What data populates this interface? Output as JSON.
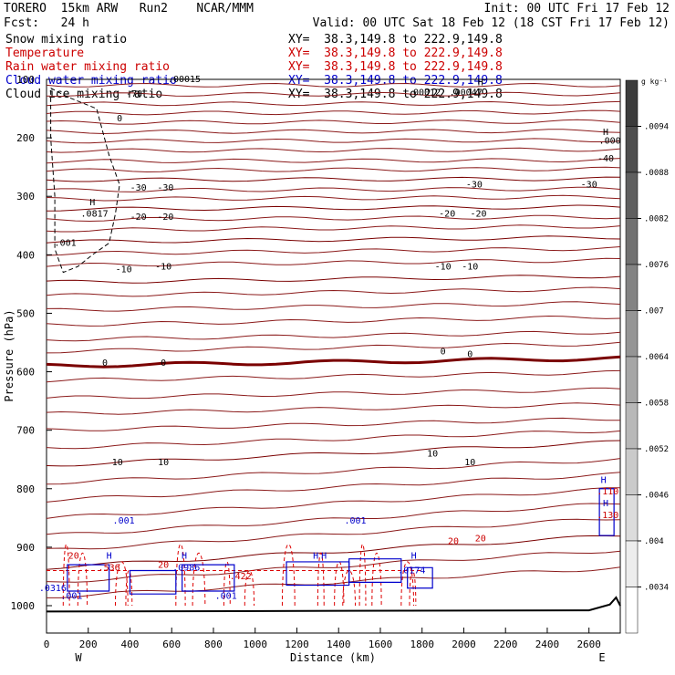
{
  "header": {
    "model": "TORERO  15km ARW   Run2    NCAR/MMM",
    "init": "Init: 00 UTC Fri 17 Feb 12",
    "fcst": "Fcst:   24 h",
    "valid": "Valid: 00 UTC Sat 18 Feb 12 (18 CST Fri 17 Feb 12)"
  },
  "fields": [
    {
      "label": "Snow mixing ratio",
      "xy": "XY=  38.3,149.8 to 222.9,149.8",
      "color": "#000000"
    },
    {
      "label": "Temperature",
      "xy": "XY=  38.3,149.8 to 222.9,149.8",
      "color": "#cc0000"
    },
    {
      "label": "Rain water mixing ratio",
      "xy": "XY=  38.3,149.8 to 222.9,149.8",
      "color": "#cc0000"
    },
    {
      "label": "Cloud water mixing ratio",
      "xy": "XY=  38.3,149.8 to 222.9,149.8",
      "color": "#0000cc"
    },
    {
      "label": "Cloud ice mixing ratio",
      "xy": "XY=  38.3,149.8 to 222.9,149.8",
      "color": "#000000"
    }
  ],
  "colorbar": {
    "unit": "g kg⁻¹",
    "ticks": [
      ".0094",
      ".0088",
      ".0082",
      ".0076",
      ".007",
      ".0064",
      ".0058",
      ".0052",
      ".0046",
      ".004",
      ".0034"
    ]
  },
  "chart_data": {
    "type": "contour",
    "xlabel": "Distance (km)",
    "ylabel": "Pressure (hPa)",
    "xlim": [
      0,
      2750
    ],
    "ylim": [
      1000,
      100
    ],
    "xticks": [
      0,
      200,
      400,
      600,
      800,
      1000,
      1200,
      1400,
      1600,
      1800,
      2000,
      2200,
      2400,
      2600
    ],
    "yticks": [
      100,
      200,
      300,
      400,
      500,
      600,
      700,
      800,
      900,
      1000
    ],
    "x_end_labels": {
      "left": "W",
      "right": "E"
    },
    "temperature_contours": [
      {
        "label": "-40",
        "p_left": 272,
        "p_right": 270
      },
      {
        "label": "-30",
        "p_left": 322,
        "p_right": 318
      },
      {
        "label": "-20",
        "p_left": 378,
        "p_right": 370
      },
      {
        "label": "-10",
        "p_left": 447,
        "p_right": 436
      },
      {
        "label": "0",
        "p_left": 590,
        "p_right": 577
      },
      {
        "label": "10",
        "p_left": 760,
        "p_right": 720
      },
      {
        "label": "20",
        "p_left": 935,
        "p_right": 880
      }
    ],
    "annotations": [
      {
        "text": "-70",
        "x": 420,
        "p": 130
      },
      {
        "text": "-40",
        "x": 2680,
        "p": 240
      },
      {
        "text": "-30",
        "x": 440,
        "p": 290
      },
      {
        "text": "-30",
        "x": 570,
        "p": 290
      },
      {
        "text": "-30",
        "x": 2050,
        "p": 285
      },
      {
        "text": "-30",
        "x": 2600,
        "p": 285
      },
      {
        "text": "-20",
        "x": 440,
        "p": 340
      },
      {
        "text": "-20",
        "x": 570,
        "p": 340
      },
      {
        "text": "-20",
        "x": 1920,
        "p": 335
      },
      {
        "text": "-20",
        "x": 2070,
        "p": 335
      },
      {
        "text": "-10",
        "x": 370,
        "p": 430
      },
      {
        "text": "-10",
        "x": 560,
        "p": 425
      },
      {
        "text": "-10",
        "x": 1900,
        "p": 425
      },
      {
        "text": "-10",
        "x": 2030,
        "p": 425
      },
      {
        "text": "0",
        "x": 280,
        "p": 590
      },
      {
        "text": "0",
        "x": 560,
        "p": 590
      },
      {
        "text": "0",
        "x": 1900,
        "p": 570
      },
      {
        "text": "0",
        "x": 2030,
        "p": 575
      },
      {
        "text": "10",
        "x": 340,
        "p": 760
      },
      {
        "text": "10",
        "x": 560,
        "p": 760
      },
      {
        "text": "10",
        "x": 1850,
        "p": 745
      },
      {
        "text": "10",
        "x": 2030,
        "p": 760
      },
      {
        "text": "20",
        "x": 130,
        "p": 920
      },
      {
        "text": "20",
        "x": 560,
        "p": 935
      },
      {
        "text": "20",
        "x": 1950,
        "p": 895
      },
      {
        "text": "20",
        "x": 2080,
        "p": 890
      },
      {
        "text": "0",
        "x": 350,
        "p": 172
      },
      {
        "text": "H",
        "x": 220,
        "p": 315
      },
      {
        "text": ".0817",
        "x": 230,
        "p": 335
      },
      {
        "text": ".001",
        "x": 90,
        "p": 385
      },
      {
        "text": ".00015",
        "x": 660,
        "p": 105
      },
      {
        "text": ".00012",
        "x": 1810,
        "p": 127
      },
      {
        "text": ".00047",
        "x": 2010,
        "p": 127
      },
      {
        "text": "H",
        "x": 2080,
        "p": 110
      },
      {
        "text": "H",
        "x": 2680,
        "p": 195
      },
      {
        "text": ".000",
        "x": 2700,
        "p": 210
      },
      {
        "text": ".001",
        "x": 370,
        "p": 860
      },
      {
        "text": ".001",
        "x": 1480,
        "p": 860
      },
      {
        "text": ".001",
        "x": 860,
        "p": 988
      },
      {
        "text": ".001",
        "x": 120,
        "p": 988
      },
      {
        "text": "H",
        "x": 300,
        "p": 920
      },
      {
        "text": ".536",
        "x": 300,
        "p": 940
      },
      {
        "text": "H",
        "x": 660,
        "p": 920
      },
      {
        "text": ".0986",
        "x": 670,
        "p": 940
      },
      {
        "text": ".422",
        "x": 930,
        "p": 955
      },
      {
        "text": "H",
        "x": 1290,
        "p": 920
      },
      {
        "text": "H",
        "x": 1330,
        "p": 920
      },
      {
        "text": ".0174",
        "x": 1750,
        "p": 945
      },
      {
        "text": "H",
        "x": 1760,
        "p": 920
      },
      {
        "text": "H",
        "x": 2670,
        "p": 790
      },
      {
        "text": ".110",
        "x": 2690,
        "p": 810
      },
      {
        "text": "H",
        "x": 2680,
        "p": 830
      },
      {
        "text": ".130",
        "x": 2690,
        "p": 850
      },
      {
        "text": ".0316",
        "x": 30,
        "p": 975
      }
    ],
    "surface_pressure": [
      {
        "x": 0,
        "p": 1010
      },
      {
        "x": 2600,
        "p": 1008
      },
      {
        "x": 2700,
        "p": 998
      },
      {
        "x": 2730,
        "p": 986
      },
      {
        "x": 2750,
        "p": 1000
      }
    ]
  }
}
